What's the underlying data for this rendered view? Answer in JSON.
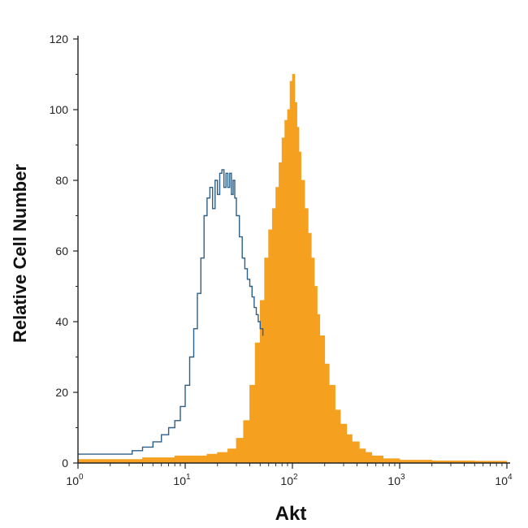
{
  "chart_data": {
    "type": "area",
    "title": "",
    "xlabel": "Akt",
    "ylabel": "Relative Cell Number",
    "xscale": "log",
    "xlim": [
      1,
      10000
    ],
    "ylim": [
      0,
      120
    ],
    "y_ticks": [
      "0",
      "20",
      "40",
      "60",
      "80",
      "100",
      "120"
    ],
    "x_ticks": [
      {
        "base": "10",
        "exp": "0"
      },
      {
        "base": "10",
        "exp": "1"
      },
      {
        "base": "10",
        "exp": "2"
      },
      {
        "base": "10",
        "exp": "3"
      },
      {
        "base": "10",
        "exp": "4"
      }
    ],
    "grid": false,
    "colors": {
      "control": "#2e5f86",
      "stained": "#f5a01e",
      "axis": "#222222"
    },
    "series": [
      {
        "style": "outline",
        "color": "#2e5f86",
        "x": [
          1,
          1.6,
          2.5,
          3.2,
          4,
          5,
          6,
          7,
          8,
          9,
          10,
          11,
          12,
          13,
          14,
          15,
          16,
          17,
          18,
          19,
          20,
          21,
          22,
          23,
          24,
          25,
          26,
          27,
          28,
          29,
          30,
          32,
          34,
          36,
          38,
          40,
          42,
          44,
          46,
          48,
          50,
          53
        ],
        "y": [
          2.5,
          2.5,
          2.5,
          3.5,
          4.5,
          6,
          8,
          10,
          12,
          16,
          22,
          30,
          38,
          48,
          58,
          70,
          75,
          78,
          72,
          80,
          76,
          82,
          83,
          78,
          82,
          78,
          82,
          76,
          80,
          75,
          70,
          64,
          58,
          55,
          52,
          50,
          47,
          44,
          42,
          40,
          38,
          36
        ]
      },
      {
        "style": "filled",
        "color": "#f5a01e",
        "x": [
          1,
          2,
          4,
          8,
          12,
          16,
          20,
          25,
          30,
          35,
          40,
          45,
          50,
          55,
          60,
          65,
          70,
          75,
          80,
          85,
          90,
          95,
          100,
          105,
          110,
          115,
          120,
          130,
          140,
          150,
          160,
          170,
          180,
          200,
          220,
          250,
          280,
          320,
          360,
          420,
          480,
          550,
          700,
          1000,
          2000,
          5000,
          10000
        ],
        "y": [
          1,
          1,
          1.5,
          2,
          2,
          2.5,
          3,
          4,
          7,
          12,
          22,
          34,
          46,
          58,
          66,
          72,
          78,
          85,
          92,
          97,
          100,
          108,
          110,
          102,
          95,
          88,
          80,
          72,
          65,
          58,
          50,
          42,
          36,
          28,
          22,
          15,
          11,
          8,
          6,
          4,
          3,
          2,
          1.2,
          0.8,
          0.6,
          0.5,
          0.5
        ]
      }
    ]
  }
}
